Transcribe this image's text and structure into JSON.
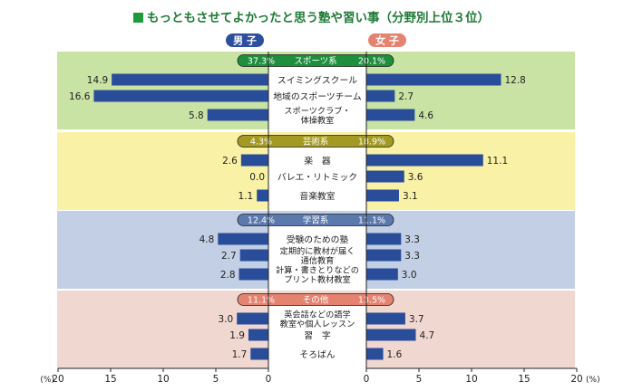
{
  "title": "もっともさせてよかったと思う塾や習い事（分野別上位３位）",
  "legend": {
    "boys": "男 子",
    "girls": "女 子"
  },
  "axis": {
    "unit_left": "(%)",
    "unit_right": "(%)"
  },
  "chart_data": {
    "type": "bar",
    "title": "もっともさせてよかったと思う塾や習い事（分野別上位３位）",
    "orientation": "horizontal-butterfly",
    "xlim": [
      0,
      20
    ],
    "ticks": [
      "20",
      "15",
      "10",
      "5",
      "0",
      "0",
      "5",
      "10",
      "15",
      "20"
    ],
    "series_names": [
      "男 子",
      "女 子"
    ],
    "groups": [
      {
        "name": "スポーツ系",
        "boys_pct": "37.3%",
        "girls_pct": "20.1%",
        "color": "#c9e3a4",
        "pill": "#1e8f3c",
        "items": [
          {
            "label": [
              "スイミングスクール"
            ],
            "boys": 14.9,
            "girls": 12.8
          },
          {
            "label": [
              "地域のスポーツチーム"
            ],
            "boys": 16.6,
            "girls": 2.7
          },
          {
            "label": [
              "スポーツクラブ・",
              "体操教室"
            ],
            "boys": 5.8,
            "girls": 4.6
          }
        ]
      },
      {
        "name": "芸術系",
        "boys_pct": "4.3%",
        "girls_pct": "18.9%",
        "color": "#f9f1a5",
        "pill": "#a39a23",
        "items": [
          {
            "label": [
              "楽　器"
            ],
            "boys": 2.6,
            "girls": 11.1
          },
          {
            "label": [
              "バレエ・リトミック"
            ],
            "boys": 0.0,
            "girls": 3.6
          },
          {
            "label": [
              "音楽教室"
            ],
            "boys": 1.1,
            "girls": 3.1
          }
        ]
      },
      {
        "name": "学習系",
        "boys_pct": "12.4%",
        "girls_pct": "11.1%",
        "color": "#c3cfe4",
        "pill": "#5b79ad",
        "items": [
          {
            "label": [
              "受験のための塾"
            ],
            "boys": 4.8,
            "girls": 3.3
          },
          {
            "label": [
              "定期的に教材が届く",
              "通信教育"
            ],
            "boys": 2.7,
            "girls": 3.3
          },
          {
            "label": [
              "計算・書きとりなどの",
              "プリント教材教室"
            ],
            "boys": 2.8,
            "girls": 3.0
          }
        ]
      },
      {
        "name": "その他",
        "boys_pct": "11.1%",
        "girls_pct": "13.5%",
        "color": "#f0d8d0",
        "pill": "#e58270",
        "items": [
          {
            "label": [
              "英会話などの語学",
              "教室や個人レッスン"
            ],
            "boys": 3.0,
            "girls": 3.7
          },
          {
            "label": [
              "習　字"
            ],
            "boys": 1.9,
            "girls": 4.7
          },
          {
            "label": [
              "そろばん"
            ],
            "boys": 1.7,
            "girls": 1.6
          }
        ]
      }
    ],
    "colors": {
      "bar": "#2a4d9a",
      "boys_badge": "#2c4f9e",
      "girls_badge": "#e58270"
    }
  }
}
